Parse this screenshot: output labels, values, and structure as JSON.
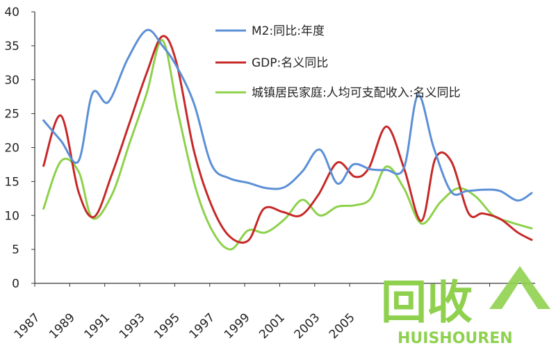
{
  "chart_data": {
    "type": "line",
    "title": "",
    "xlabel": "",
    "ylabel": "",
    "ylim": [
      0,
      40
    ],
    "yticks": [
      0,
      5,
      10,
      15,
      20,
      25,
      30,
      35,
      40
    ],
    "xlim": [
      1987,
      2015.6
    ],
    "xticks": [
      1987,
      1989,
      1991,
      1993,
      1995,
      1997,
      1999,
      2001,
      2003,
      2005,
      2007,
      2009,
      2011,
      2013,
      2015
    ],
    "xtick_labels": [
      "1987",
      "1989",
      "1991",
      "1993",
      "1995",
      "1997",
      "1999",
      "2001",
      "2003",
      "2005",
      "",
      "",
      "",
      "",
      ""
    ],
    "grid": false,
    "legend_position": "top-right",
    "series": [
      {
        "name": "M2:同比:年度",
        "color": "#5b8fd6",
        "x": [
          1987.5,
          1988.5,
          1989.5,
          1990.3,
          1991.2,
          1992.3,
          1993.4,
          1994.3,
          1995.1,
          1996.1,
          1997.1,
          1998.1,
          1999.2,
          2000.3,
          2001.3,
          2002.3,
          2003.3,
          2004.3,
          2005.2,
          2006.2,
          2007.1,
          2008.1,
          2008.9,
          2009.8,
          2010.8,
          2011.7,
          2012.7,
          2013.6,
          2014.6,
          2015.4
        ],
        "y": [
          24.0,
          21.0,
          18.0,
          28.0,
          26.7,
          33.0,
          37.3,
          35.0,
          32.0,
          26.5,
          17.5,
          15.5,
          14.8,
          14.0,
          14.2,
          16.5,
          19.7,
          14.7,
          17.5,
          16.8,
          16.7,
          17.0,
          27.7,
          20.0,
          13.5,
          13.6,
          13.8,
          13.6,
          12.2,
          13.3
        ]
      },
      {
        "name": "GDP:名义同比",
        "color": "#c62828",
        "x": [
          1987.5,
          1988.5,
          1989.5,
          1990.4,
          1991.4,
          1992.4,
          1993.4,
          1994.3,
          1995.1,
          1996.1,
          1997.1,
          1998.1,
          1999.2,
          2000.1,
          2001.2,
          2002.2,
          2003.2,
          2004.3,
          2005.3,
          2006.1,
          2007.1,
          2008.1,
          2009.1,
          2009.9,
          2010.8,
          2011.8,
          2012.6,
          2013.6,
          2014.6,
          2015.4
        ],
        "y": [
          17.3,
          24.7,
          13.5,
          9.8,
          16.0,
          23.5,
          31.0,
          36.4,
          32.5,
          19.5,
          11.5,
          7.0,
          6.3,
          11.0,
          10.5,
          10.0,
          13.0,
          17.8,
          15.7,
          17.0,
          23.1,
          17.0,
          9.2,
          18.4,
          18.0,
          10.3,
          10.3,
          9.5,
          7.5,
          6.4
        ]
      },
      {
        "name": "城镇居民家庭:人均可支配收入:名义同比",
        "color": "#8dd14a",
        "x": [
          1987.5,
          1988.5,
          1989.5,
          1990.3,
          1991.4,
          1992.4,
          1993.4,
          1994.3,
          1995.2,
          1996.2,
          1997.2,
          1998.2,
          1999.2,
          2000.2,
          2001.3,
          2002.3,
          2003.3,
          2004.3,
          2005.3,
          2006.2,
          2007.1,
          2008.1,
          2009.1,
          2010.2,
          2011.2,
          2012.2,
          2013.2,
          2014.2,
          2015.4
        ],
        "y": [
          11.0,
          18.0,
          16.5,
          9.6,
          13.0,
          20.5,
          28.0,
          35.8,
          25.0,
          14.0,
          7.5,
          5.0,
          7.8,
          7.5,
          9.5,
          12.3,
          10.0,
          11.3,
          11.5,
          12.5,
          17.2,
          14.0,
          8.8,
          12.0,
          14.0,
          12.8,
          10.0,
          9.0,
          8.1
        ]
      }
    ]
  },
  "watermark": {
    "main_text": "回收",
    "sub_text": "HUISHOUREN"
  }
}
